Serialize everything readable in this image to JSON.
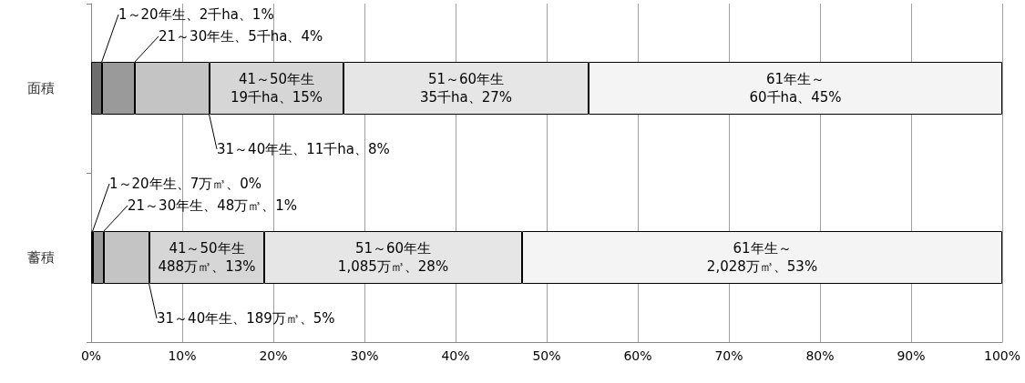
{
  "chart_data": {
    "type": "bar",
    "orientation": "horizontal",
    "stacked": true,
    "categories": [
      "面積",
      "蓄積"
    ],
    "series": [
      {
        "color": "#6e6e6e",
        "values": [
          1.2,
          0.2
        ],
        "value_labels": [
          "1～20年生、2千ha、1%",
          "1～20年生、7万㎥、0%"
        ]
      },
      {
        "color": "#9a9a9a",
        "values": [
          3.6,
          1.2
        ],
        "value_labels": [
          "21～30年生、5千ha、4%",
          "21～30年生、48万㎥、1%"
        ]
      },
      {
        "color": "#c4c4c4",
        "values": [
          8.2,
          5.0
        ],
        "value_labels": [
          "31～40年生、11千ha、8%",
          "31～40年生、189万㎥、5%"
        ]
      },
      {
        "color": "#d6d6d6",
        "values": [
          14.7,
          12.6
        ],
        "value_labels": [
          "41～50年生\n19千ha、15%",
          "41～50年生\n488万㎥、13%"
        ]
      },
      {
        "color": "#e6e6e6",
        "values": [
          26.9,
          28.3
        ],
        "value_labels": [
          "51～60年生\n35千ha、27%",
          "51～60年生\n1,085万㎥、28%"
        ]
      },
      {
        "color": "#f4f4f4",
        "values": [
          45.4,
          52.7
        ],
        "value_labels": [
          "61年生～\n60千ha、45%",
          "61年生～\n2,028万㎥、53%"
        ]
      }
    ],
    "xlim": [
      0,
      100
    ],
    "xticks": [
      {
        "value": 0,
        "label": "0%"
      },
      {
        "value": 10,
        "label": "10%"
      },
      {
        "value": 20,
        "label": "20%"
      },
      {
        "value": 30,
        "label": "30%"
      },
      {
        "value": 40,
        "label": "40%"
      },
      {
        "value": 50,
        "label": "50%"
      },
      {
        "value": 60,
        "label": "60%"
      },
      {
        "value": 70,
        "label": "70%"
      },
      {
        "value": 80,
        "label": "80%"
      },
      {
        "value": 90,
        "label": "90%"
      },
      {
        "value": 100,
        "label": "100%"
      }
    ],
    "grid": "x"
  }
}
